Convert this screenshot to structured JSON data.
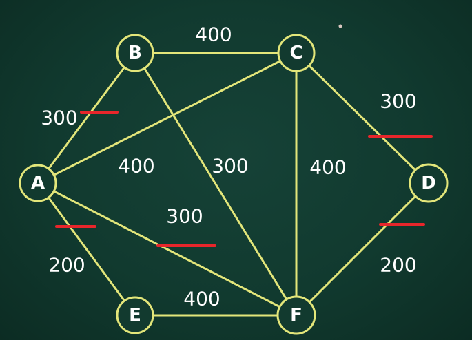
{
  "diagram": {
    "nodes": [
      {
        "id": "A",
        "label": "A"
      },
      {
        "id": "B",
        "label": "B"
      },
      {
        "id": "C",
        "label": "C"
      },
      {
        "id": "D",
        "label": "D"
      },
      {
        "id": "E",
        "label": "E"
      },
      {
        "id": "F",
        "label": "F"
      }
    ],
    "edges": [
      {
        "from": "A",
        "to": "B",
        "weight": "300",
        "marked": true
      },
      {
        "from": "A",
        "to": "C",
        "weight": "400",
        "marked": false
      },
      {
        "from": "A",
        "to": "F",
        "weight": "300",
        "marked": true
      },
      {
        "from": "A",
        "to": "E",
        "weight": "200",
        "marked": true
      },
      {
        "from": "B",
        "to": "C",
        "weight": "400",
        "marked": false
      },
      {
        "from": "B",
        "to": "F",
        "weight": "300",
        "marked": false
      },
      {
        "from": "C",
        "to": "F",
        "weight": "400",
        "marked": false
      },
      {
        "from": "C",
        "to": "D",
        "weight": "300",
        "marked": true
      },
      {
        "from": "D",
        "to": "F",
        "weight": "200",
        "marked": true
      },
      {
        "from": "E",
        "to": "F",
        "weight": "400",
        "marked": false
      }
    ],
    "colors": {
      "background": "#123a2f",
      "edge": "#e3e67a",
      "text": "#ffffff",
      "mark": "#e8262b"
    }
  }
}
